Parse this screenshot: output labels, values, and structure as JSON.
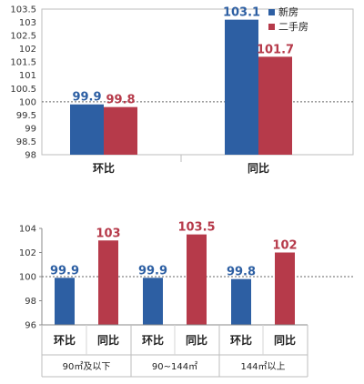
{
  "colors": {
    "new": "#2d5fa3",
    "second": "#b63a4a"
  },
  "chart_data": [
    {
      "type": "bar",
      "categories": [
        "环比",
        "同比"
      ],
      "series": [
        {
          "name": "新房",
          "values": [
            99.9,
            103.1
          ]
        },
        {
          "name": "二手房",
          "values": [
            99.8,
            101.7
          ]
        }
      ],
      "ylim": [
        98,
        103.5
      ],
      "yticks": [
        "98",
        "98.5",
        "99",
        "99.5",
        "100",
        "100.5",
        "101",
        "101.5",
        "102",
        "102.5",
        "103",
        "103.5"
      ],
      "reference_line": 100,
      "legend": "top-right"
    },
    {
      "type": "bar",
      "groups": [
        "90㎡及以下",
        "90~144㎡",
        "144㎡以上"
      ],
      "categories": [
        "环比",
        "同比",
        "环比",
        "同比",
        "环比",
        "同比"
      ],
      "values": [
        99.9,
        103,
        99.9,
        103.5,
        99.8,
        102
      ],
      "value_labels": [
        "99.9",
        "103",
        "99.9",
        "103.5",
        "99.8",
        "102"
      ],
      "colors": [
        "#2d5fa3",
        "#b63a4a",
        "#2d5fa3",
        "#b63a4a",
        "#2d5fa3",
        "#b63a4a"
      ],
      "ylim": [
        96,
        104
      ],
      "yticks": [
        "96",
        "98",
        "100",
        "102",
        "104"
      ],
      "reference_line": 100
    }
  ]
}
